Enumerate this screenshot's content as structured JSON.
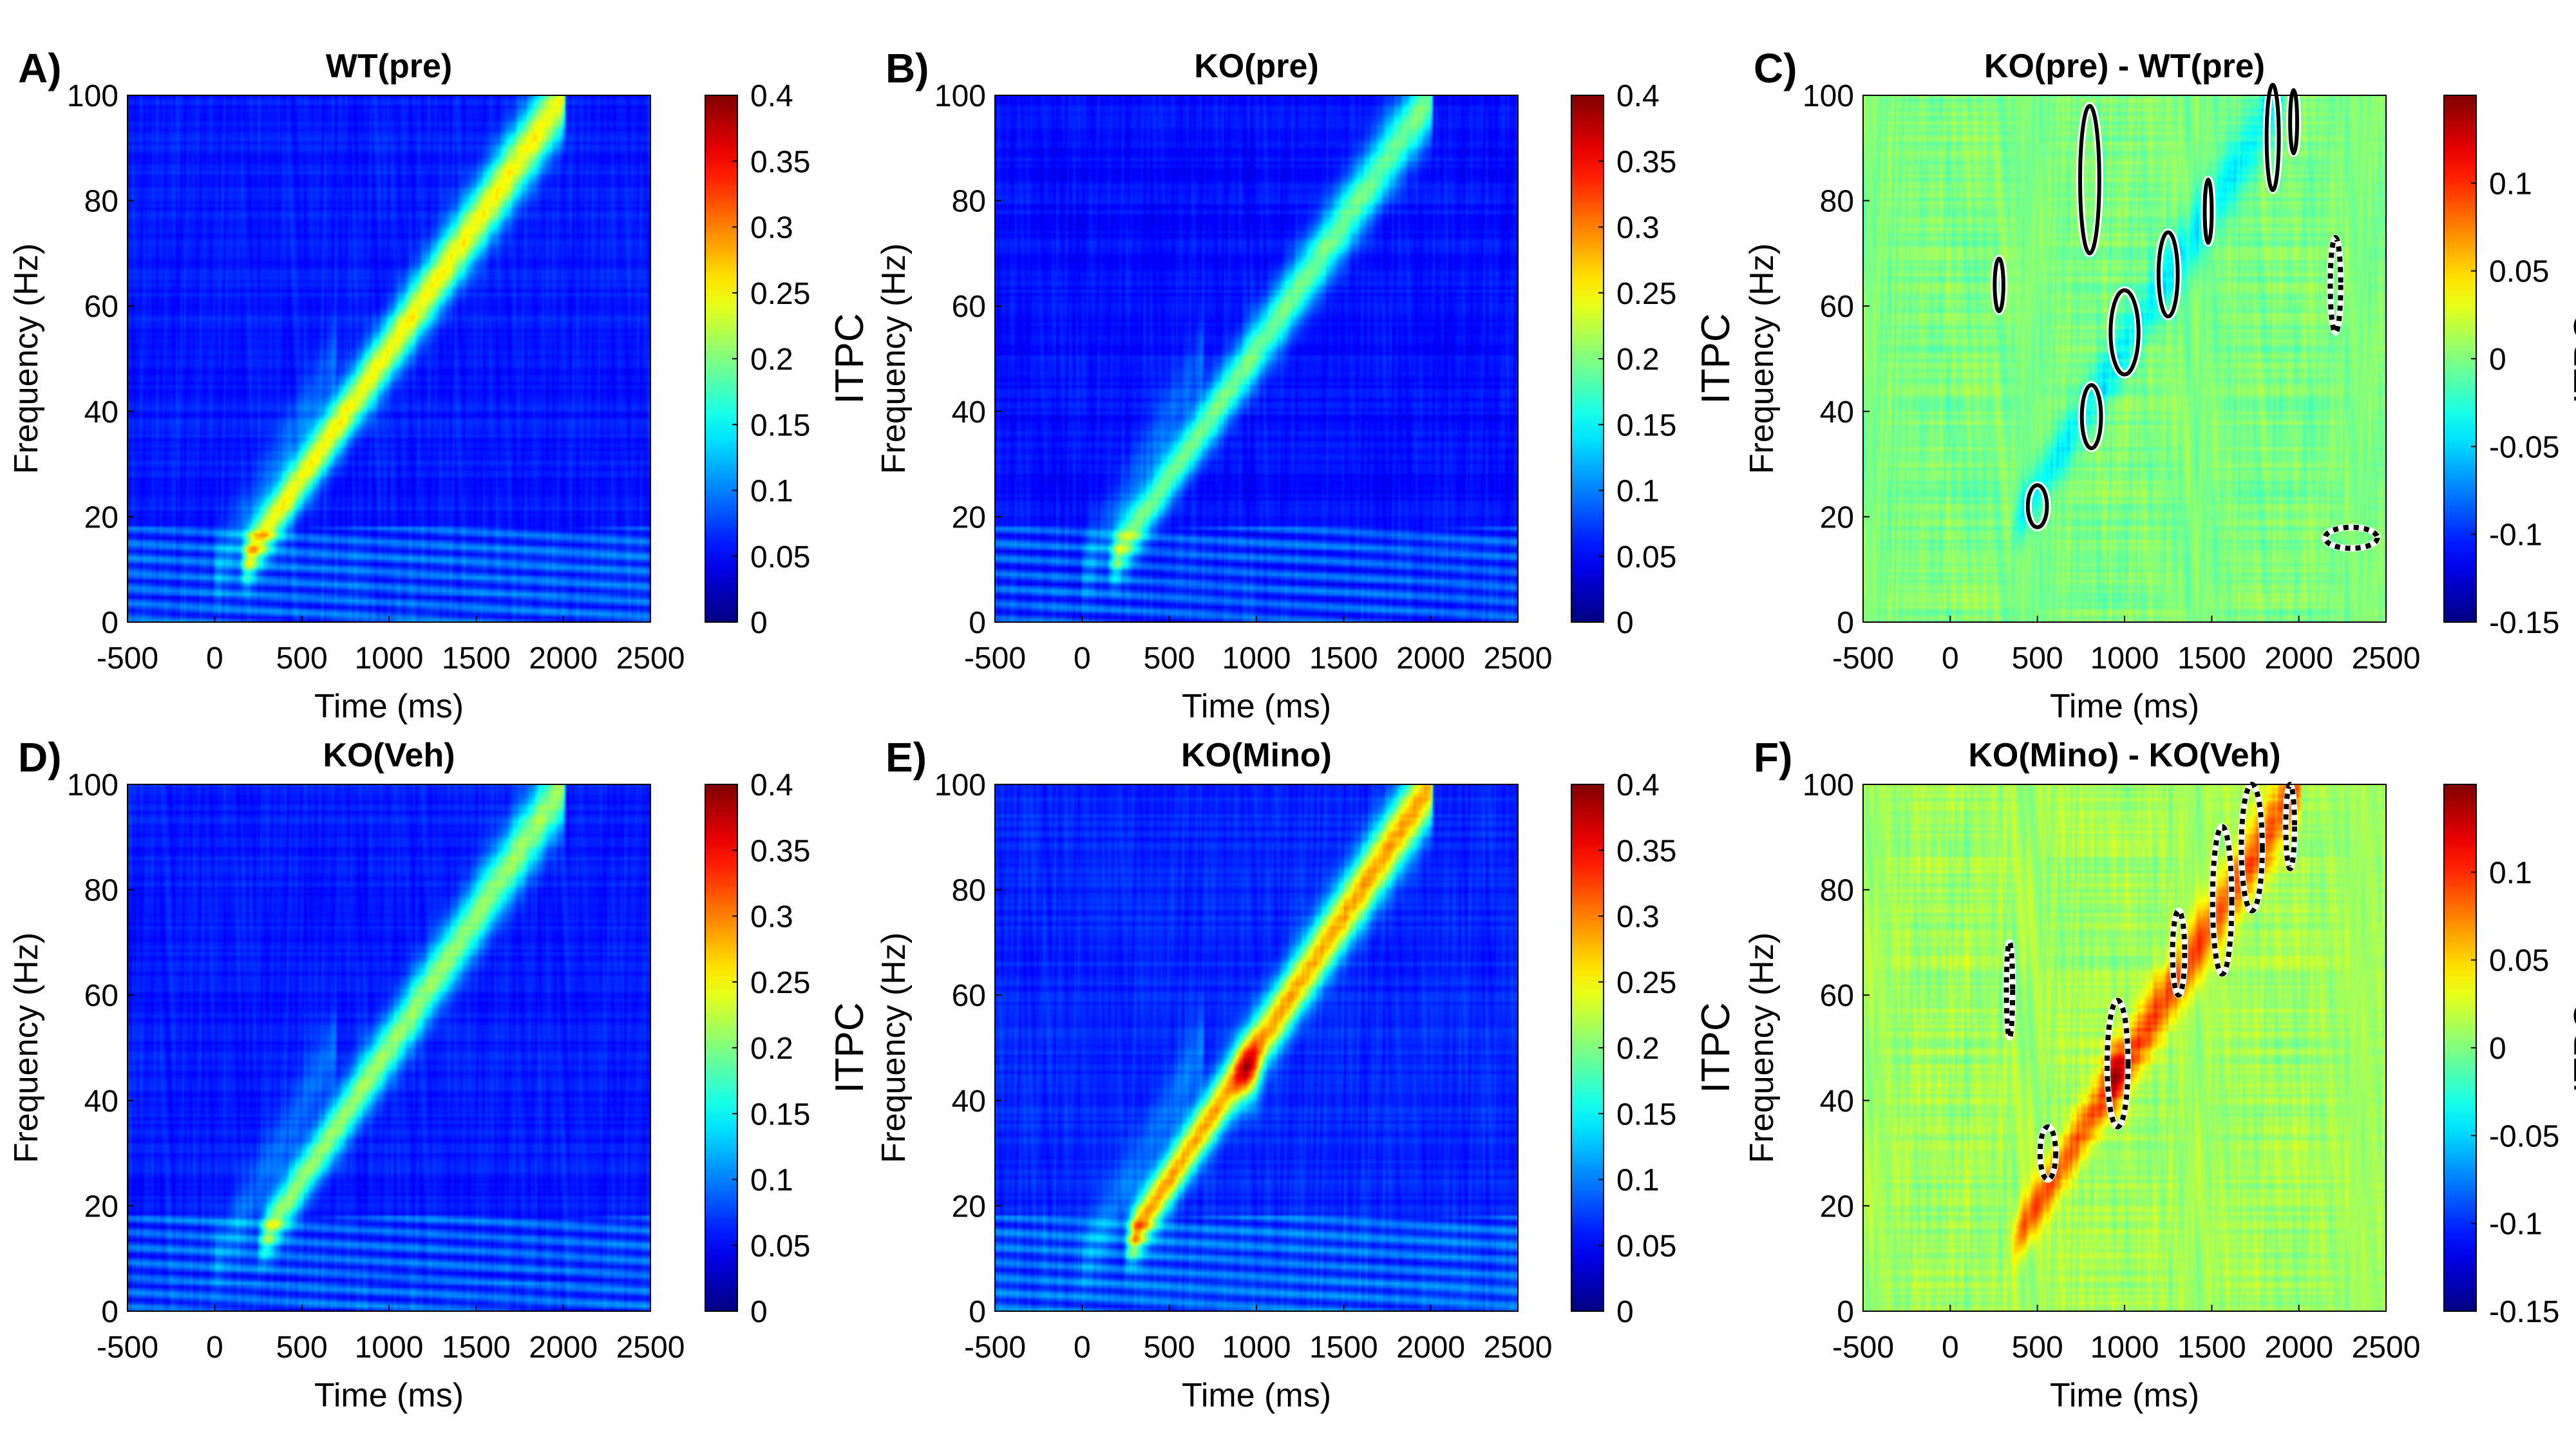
{
  "colors": {
    "jet_low": "#00008f",
    "jet_high": "#800000",
    "contour": "#000000",
    "contour_halo": "#ffffff"
  },
  "chart_data": [
    {
      "type": "heatmap",
      "panel": "A)",
      "title": "WT(pre)",
      "xlabel": "Time (ms)",
      "ylabel": "Frequency (Hz)",
      "clabel": "ITPC",
      "xlim": [
        -500,
        2500
      ],
      "ylim": [
        0,
        100
      ],
      "clim": [
        0,
        0.4
      ],
      "xticks": [
        "-500",
        "0",
        "500",
        "1000",
        "1500",
        "2000",
        "2500"
      ],
      "yticks": [
        "0",
        "20",
        "40",
        "60",
        "80",
        "100"
      ],
      "cticks": [
        "0",
        "0.05",
        "0.1",
        "0.15",
        "0.2",
        "0.25",
        "0.3",
        "0.35",
        "0.4"
      ],
      "ridge": {
        "t_start": 200,
        "f_start": 13,
        "t_end": 2000,
        "f_end": 100,
        "peak": 0.19
      },
      "background": 0.06,
      "contours": []
    },
    {
      "type": "heatmap",
      "panel": "B)",
      "title": "KO(pre)",
      "xlabel": "Time (ms)",
      "ylabel": "Frequency (Hz)",
      "clabel": "ITPC",
      "xlim": [
        -500,
        2500
      ],
      "ylim": [
        0,
        100
      ],
      "clim": [
        0,
        0.4
      ],
      "xticks": [
        "-500",
        "0",
        "500",
        "1000",
        "1500",
        "2000",
        "2500"
      ],
      "yticks": [
        "0",
        "20",
        "40",
        "60",
        "80",
        "100"
      ],
      "cticks": [
        "0",
        "0.05",
        "0.1",
        "0.15",
        "0.2",
        "0.25",
        "0.3",
        "0.35",
        "0.4"
      ],
      "ridge": {
        "t_start": 200,
        "f_start": 13,
        "t_end": 2000,
        "f_end": 100,
        "peak": 0.14
      },
      "background": 0.055,
      "contours": []
    },
    {
      "type": "heatmap",
      "panel": "C)",
      "title": "KO(pre) - WT(pre)",
      "xlabel": "Time (ms)",
      "ylabel": "Frequency (Hz)",
      "clabel": "ITPC",
      "xlim": [
        -500,
        2500
      ],
      "ylim": [
        0,
        100
      ],
      "clim": [
        -0.15,
        0.15
      ],
      "xticks": [
        "-500",
        "0",
        "500",
        "1000",
        "1500",
        "2000",
        "2500"
      ],
      "yticks": [
        "0",
        "20",
        "40",
        "60",
        "80",
        "100"
      ],
      "cticks": [
        "-0.15",
        "-0.1",
        "-0.05",
        "0",
        "0.05",
        "0.1"
      ],
      "ridge": {
        "t_start": 400,
        "f_start": 20,
        "t_end": 1900,
        "f_end": 100,
        "peak": -0.04
      },
      "background": 0.0,
      "contours": [
        {
          "t": 500,
          "f": 22,
          "rt": 55,
          "rf": 4,
          "style": "solid"
        },
        {
          "t": 810,
          "f": 39,
          "rt": 55,
          "rf": 6,
          "style": "solid"
        },
        {
          "t": 1000,
          "f": 55,
          "rt": 80,
          "rf": 8,
          "style": "solid"
        },
        {
          "t": 1250,
          "f": 66,
          "rt": 55,
          "rf": 8,
          "style": "solid"
        },
        {
          "t": 1480,
          "f": 78,
          "rt": 20,
          "rf": 6,
          "style": "solid"
        },
        {
          "t": 800,
          "f": 84,
          "rt": 55,
          "rf": 14,
          "style": "solid"
        },
        {
          "t": 280,
          "f": 64,
          "rt": 25,
          "rf": 5,
          "style": "solid"
        },
        {
          "t": 1850,
          "f": 92,
          "rt": 35,
          "rf": 10,
          "style": "solid"
        },
        {
          "t": 1970,
          "f": 95,
          "rt": 20,
          "rf": 6,
          "style": "solid"
        },
        {
          "t": 2210,
          "f": 64,
          "rt": 30,
          "rf": 9,
          "style": "dotted"
        },
        {
          "t": 2300,
          "f": 16,
          "rt": 150,
          "rf": 2,
          "style": "dotted"
        }
      ]
    },
    {
      "type": "heatmap",
      "panel": "D)",
      "title": "KO(Veh)",
      "xlabel": "Time (ms)",
      "ylabel": "Frequency (Hz)",
      "clabel": "ITPC",
      "xlim": [
        -500,
        2500
      ],
      "ylim": [
        0,
        100
      ],
      "clim": [
        0,
        0.4
      ],
      "xticks": [
        "-500",
        "0",
        "500",
        "1000",
        "1500",
        "2000",
        "2500"
      ],
      "yticks": [
        "0",
        "20",
        "40",
        "60",
        "80",
        "100"
      ],
      "cticks": [
        "0",
        "0.05",
        "0.1",
        "0.15",
        "0.2",
        "0.25",
        "0.3",
        "0.35",
        "0.4"
      ],
      "ridge": {
        "t_start": 300,
        "f_start": 15,
        "t_end": 2000,
        "f_end": 100,
        "peak": 0.15
      },
      "background": 0.06,
      "contours": []
    },
    {
      "type": "heatmap",
      "panel": "E)",
      "title": "KO(Mino)",
      "xlabel": "Time (ms)",
      "ylabel": "Frequency (Hz)",
      "clabel": "ITPC",
      "xlim": [
        -500,
        2500
      ],
      "ylim": [
        0,
        100
      ],
      "clim": [
        0,
        0.4
      ],
      "xticks": [
        "-500",
        "0",
        "500",
        "1000",
        "1500",
        "2000",
        "2500"
      ],
      "yticks": [
        "0",
        "20",
        "40",
        "60",
        "80",
        "100"
      ],
      "cticks": [
        "0",
        "0.05",
        "0.1",
        "0.15",
        "0.2",
        "0.25",
        "0.3",
        "0.35",
        "0.4"
      ],
      "ridge": {
        "t_start": 300,
        "f_start": 15,
        "t_end": 2000,
        "f_end": 100,
        "peak": 0.22,
        "hot_t": 950,
        "hot_f": 45,
        "hot_value": 0.34
      },
      "background": 0.065,
      "contours": []
    },
    {
      "type": "heatmap",
      "panel": "F)",
      "title": "KO(Mino) - KO(Veh)",
      "xlabel": "Time (ms)",
      "ylabel": "Frequency (Hz)",
      "clabel": "ITPC",
      "xlim": [
        -500,
        2500
      ],
      "ylim": [
        0,
        100
      ],
      "clim": [
        -0.15,
        0.15
      ],
      "xticks": [
        "-500",
        "0",
        "500",
        "1000",
        "1500",
        "2000",
        "2500"
      ],
      "yticks": [
        "0",
        "20",
        "40",
        "60",
        "80",
        "100"
      ],
      "cticks": [
        "-0.15",
        "-0.1",
        "-0.05",
        "0",
        "0.05",
        "0.1"
      ],
      "ridge": {
        "t_start": 400,
        "f_start": 15,
        "t_end": 2000,
        "f_end": 100,
        "peak": 0.08,
        "hot_t": 950,
        "hot_f": 45,
        "hot_value": 0.13
      },
      "background": 0.01,
      "contours": [
        {
          "t": 340,
          "f": 61,
          "rt": 18,
          "rf": 9,
          "style": "dotted"
        },
        {
          "t": 560,
          "f": 30,
          "rt": 45,
          "rf": 5,
          "style": "dotted"
        },
        {
          "t": 960,
          "f": 47,
          "rt": 60,
          "rf": 12,
          "style": "dotted"
        },
        {
          "t": 1310,
          "f": 68,
          "rt": 35,
          "rf": 8,
          "style": "dotted"
        },
        {
          "t": 1560,
          "f": 78,
          "rt": 55,
          "rf": 14,
          "style": "dotted"
        },
        {
          "t": 1730,
          "f": 88,
          "rt": 60,
          "rf": 12,
          "style": "dotted"
        },
        {
          "t": 1950,
          "f": 92,
          "rt": 25,
          "rf": 8,
          "style": "dotted"
        }
      ]
    }
  ]
}
